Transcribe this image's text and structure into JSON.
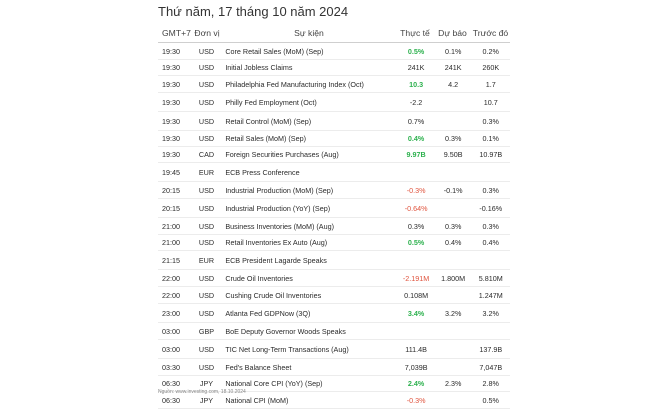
{
  "title": "Thứ năm, 17 tháng 10 năm 2024",
  "headers": {
    "time": "GMT+7",
    "currency": "Đơn vị",
    "event": "Sự kiện",
    "actual": "Thực tế",
    "forecast": "Dự báo",
    "previous": "Trước đó"
  },
  "rows": [
    {
      "time": "19:30",
      "currency": "USD",
      "event": "Core Retail Sales (MoM) (Sep)",
      "actual": "0.5%",
      "forecast": "0.1%",
      "previous": "0.2%",
      "actual_color": "green"
    },
    {
      "time": "19:30",
      "currency": "USD",
      "event": "Initial Jobless Claims",
      "actual": "241K",
      "forecast": "241K",
      "previous": "260K",
      "actual_color": "neutral"
    },
    {
      "time": "19:30",
      "currency": "USD",
      "event": "Philadelphia Fed Manufacturing Index (Oct)",
      "actual": "10.3",
      "forecast": "4.2",
      "previous": "1.7",
      "actual_color": "green"
    },
    {
      "time": "19:30",
      "currency": "USD",
      "event": "Philly Fed Employment (Oct)",
      "actual": "-2.2",
      "forecast": "",
      "previous": "10.7",
      "actual_color": "neutral"
    },
    {
      "time": "19:30",
      "currency": "USD",
      "event": "Retail Control (MoM) (Sep)",
      "actual": "0.7%",
      "forecast": "",
      "previous": "0.3%",
      "actual_color": "neutral"
    },
    {
      "time": "19:30",
      "currency": "USD",
      "event": "Retail Sales (MoM) (Sep)",
      "actual": "0.4%",
      "forecast": "0.3%",
      "previous": "0.1%",
      "actual_color": "green"
    },
    {
      "time": "19:30",
      "currency": "CAD",
      "event": "Foreign Securities Purchases (Aug)",
      "actual": "9.97B",
      "forecast": "9.50B",
      "previous": "10.97B",
      "actual_color": "green"
    },
    {
      "time": "19:45",
      "currency": "EUR",
      "event": "ECB Press Conference",
      "actual": "",
      "forecast": "",
      "previous": "",
      "actual_color": "neutral"
    },
    {
      "time": "20:15",
      "currency": "USD",
      "event": "Industrial Production (MoM) (Sep)",
      "actual": "-0.3%",
      "forecast": "-0.1%",
      "previous": "0.3%",
      "actual_color": "red"
    },
    {
      "time": "20:15",
      "currency": "USD",
      "event": "Industrial Production (YoY) (Sep)",
      "actual": "-0.64%",
      "forecast": "",
      "previous": "-0.16%",
      "actual_color": "red"
    },
    {
      "time": "21:00",
      "currency": "USD",
      "event": "Business Inventories (MoM) (Aug)",
      "actual": "0.3%",
      "forecast": "0.3%",
      "previous": "0.3%",
      "actual_color": "neutral"
    },
    {
      "time": "21:00",
      "currency": "USD",
      "event": "Retail Inventories Ex Auto (Aug)",
      "actual": "0.5%",
      "forecast": "0.4%",
      "previous": "0.4%",
      "actual_color": "green"
    },
    {
      "time": "21:15",
      "currency": "EUR",
      "event": "ECB President Lagarde Speaks",
      "actual": "",
      "forecast": "",
      "previous": "",
      "actual_color": "neutral"
    },
    {
      "time": "22:00",
      "currency": "USD",
      "event": "Crude Oil Inventories",
      "actual": "-2.191M",
      "forecast": "1.800M",
      "previous": "5.810M",
      "actual_color": "red"
    },
    {
      "time": "22:00",
      "currency": "USD",
      "event": "Cushing Crude Oil Inventories",
      "actual": "0.108M",
      "forecast": "",
      "previous": "1.247M",
      "actual_color": "neutral"
    },
    {
      "time": "23:00",
      "currency": "USD",
      "event": "Atlanta Fed GDPNow (3Q)",
      "actual": "3.4%",
      "forecast": "3.2%",
      "previous": "3.2%",
      "actual_color": "green"
    },
    {
      "time": "03:00",
      "currency": "GBP",
      "event": "BoE Deputy Governor Woods Speaks",
      "actual": "",
      "forecast": "",
      "previous": "",
      "actual_color": "neutral"
    },
    {
      "time": "03:00",
      "currency": "USD",
      "event": "TIC Net Long-Term Transactions (Aug)",
      "actual": "111.4B",
      "forecast": "",
      "previous": "137.9B",
      "actual_color": "neutral"
    },
    {
      "time": "03:30",
      "currency": "USD",
      "event": "Fed's Balance Sheet",
      "actual": "7,039B",
      "forecast": "",
      "previous": "7,047B",
      "actual_color": "neutral"
    },
    {
      "time": "06:30",
      "currency": "JPY",
      "event": "National Core CPI (YoY) (Sep)",
      "actual": "2.4%",
      "forecast": "2.3%",
      "previous": "2.8%",
      "actual_color": "green"
    },
    {
      "time": "06:30",
      "currency": "JPY",
      "event": "National CPI (MoM)",
      "actual": "-0.3%",
      "forecast": "",
      "previous": "0.5%",
      "actual_color": "red"
    }
  ],
  "source": "Nguồn: www.investing.com, 18.10.2024"
}
